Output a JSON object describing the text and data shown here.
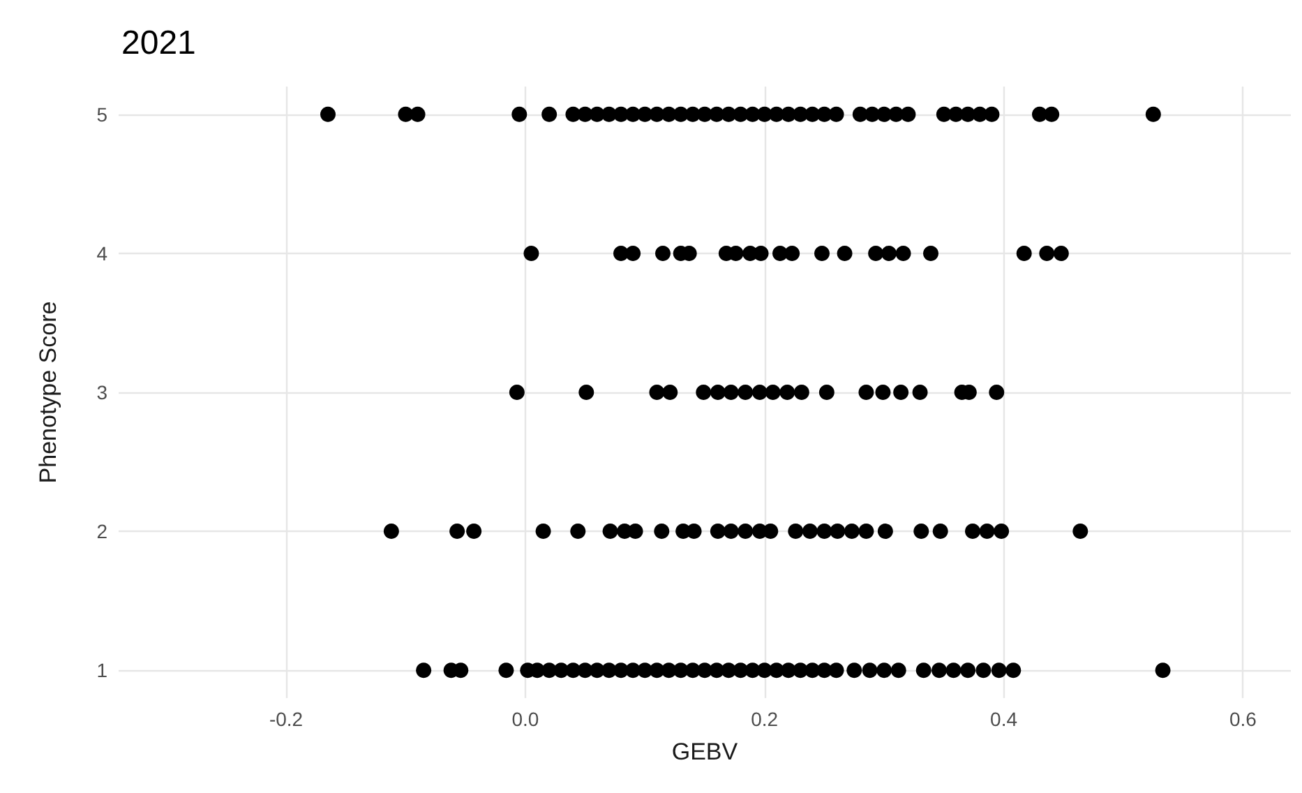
{
  "chart_data": {
    "type": "scatter",
    "title": "2021",
    "xlabel": "GEBV",
    "ylabel": "Phenotype Score",
    "xlim": [
      -0.34,
      0.64
    ],
    "xticks": [
      -0.2,
      {
        "value": 0,
        "label": "0.0"
      },
      0.2,
      0.4,
      0.6
    ],
    "ylim": [
      0.8,
      5.2
    ],
    "yticks": [
      1,
      2,
      3,
      4,
      5
    ],
    "grid": true,
    "marker": "circle",
    "series": [
      {
        "color": "#000000",
        "x": [
          -0.165,
          -0.1,
          -0.09,
          -0.005,
          0.02,
          0.04,
          0.05,
          0.06,
          0.07,
          0.08,
          0.09,
          0.1,
          0.11,
          0.12,
          0.13,
          0.14,
          0.15,
          0.16,
          0.17,
          0.18,
          0.19,
          0.2,
          0.21,
          0.22,
          0.23,
          0.24,
          0.25,
          0.26,
          0.28,
          0.29,
          0.3,
          0.31,
          0.32,
          0.35,
          0.36,
          0.37,
          0.38,
          0.39,
          0.43,
          0.44,
          0.525
        ],
        "values": [
          5,
          5,
          5,
          5,
          5,
          5,
          5,
          5,
          5,
          5,
          5,
          5,
          5,
          5,
          5,
          5,
          5,
          5,
          5,
          5,
          5,
          5,
          5,
          5,
          5,
          5,
          5,
          5,
          5,
          5,
          5,
          5,
          5,
          5,
          5,
          5,
          5,
          5,
          5,
          5,
          5
        ]
      },
      {
        "color": "#000000",
        "x": [
          0.005,
          0.08,
          0.09,
          0.115,
          0.13,
          0.137,
          0.168,
          0.176,
          0.188,
          0.197,
          0.213,
          0.223,
          0.248,
          0.267,
          0.293,
          0.304,
          0.316,
          0.339,
          0.417,
          0.436,
          0.448
        ],
        "values": [
          4,
          4,
          4,
          4,
          4,
          4,
          4,
          4,
          4,
          4,
          4,
          4,
          4,
          4,
          4,
          4,
          4,
          4,
          4,
          4,
          4
        ]
      },
      {
        "color": "#000000",
        "x": [
          -0.007,
          0.051,
          0.11,
          0.121,
          0.149,
          0.161,
          0.172,
          0.184,
          0.196,
          0.207,
          0.219,
          0.231,
          0.252,
          0.285,
          0.299,
          0.314,
          0.33,
          0.365,
          0.371,
          0.394
        ],
        "values": [
          3,
          3,
          3,
          3,
          3,
          3,
          3,
          3,
          3,
          3,
          3,
          3,
          3,
          3,
          3,
          3,
          3,
          3,
          3,
          3
        ]
      },
      {
        "color": "#000000",
        "x": [
          -0.112,
          -0.057,
          -0.043,
          0.015,
          0.044,
          0.071,
          0.083,
          0.092,
          0.114,
          0.132,
          0.141,
          0.161,
          0.172,
          0.184,
          0.196,
          0.205,
          0.226,
          0.238,
          0.25,
          0.261,
          0.273,
          0.285,
          0.301,
          0.331,
          0.347,
          0.374,
          0.386,
          0.398,
          0.464
        ],
        "values": [
          2,
          2,
          2,
          2,
          2,
          2,
          2,
          2,
          2,
          2,
          2,
          2,
          2,
          2,
          2,
          2,
          2,
          2,
          2,
          2,
          2,
          2,
          2,
          2,
          2,
          2,
          2,
          2,
          2
        ]
      },
      {
        "color": "#000000",
        "x": [
          -0.085,
          -0.062,
          -0.054,
          -0.016,
          0.002,
          0.01,
          0.02,
          0.03,
          0.04,
          0.05,
          0.06,
          0.07,
          0.08,
          0.09,
          0.1,
          0.11,
          0.12,
          0.13,
          0.14,
          0.15,
          0.16,
          0.17,
          0.18,
          0.19,
          0.2,
          0.21,
          0.22,
          0.23,
          0.24,
          0.25,
          0.26,
          0.275,
          0.288,
          0.3,
          0.312,
          0.333,
          0.346,
          0.358,
          0.37,
          0.383,
          0.396,
          0.408,
          0.533
        ],
        "values": [
          1,
          1,
          1,
          1,
          1,
          1,
          1,
          1,
          1,
          1,
          1,
          1,
          1,
          1,
          1,
          1,
          1,
          1,
          1,
          1,
          1,
          1,
          1,
          1,
          1,
          1,
          1,
          1,
          1,
          1,
          1,
          1,
          1,
          1,
          1,
          1,
          1,
          1,
          1,
          1,
          1,
          1,
          1
        ]
      }
    ]
  }
}
